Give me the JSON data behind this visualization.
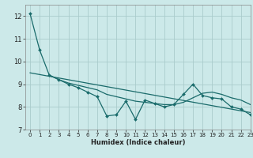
{
  "xlabel": "Humidex (Indice chaleur)",
  "background_color": "#cce9e9",
  "grid_color": "#aacccc",
  "line_color": "#1a6b6b",
  "xlim": [
    -0.5,
    23
  ],
  "ylim": [
    7,
    12.5
  ],
  "yticks": [
    7,
    8,
    9,
    10,
    11,
    12
  ],
  "xticks": [
    0,
    1,
    2,
    3,
    4,
    5,
    6,
    7,
    8,
    9,
    10,
    11,
    12,
    13,
    14,
    15,
    16,
    17,
    18,
    19,
    20,
    21,
    22,
    23
  ],
  "jagged_x": [
    0,
    1,
    2,
    3,
    4,
    5,
    6,
    7,
    8,
    9,
    10,
    11,
    12,
    13,
    14,
    15,
    16,
    17,
    18,
    19,
    20,
    21,
    22,
    23
  ],
  "jagged_y": [
    12.1,
    10.5,
    9.4,
    9.2,
    9.0,
    8.85,
    8.65,
    8.45,
    7.6,
    7.65,
    8.25,
    7.45,
    8.3,
    8.15,
    8.0,
    8.1,
    8.55,
    9.0,
    8.5,
    8.4,
    8.35,
    8.0,
    7.9,
    7.65
  ],
  "smooth_x": [
    2,
    3,
    4,
    5,
    6,
    7,
    8,
    9,
    10,
    11,
    12,
    13,
    14,
    15,
    16,
    17,
    18,
    19,
    20,
    21,
    22,
    23
  ],
  "smooth_y": [
    9.4,
    9.2,
    9.05,
    8.95,
    8.85,
    8.75,
    8.55,
    8.45,
    8.35,
    8.25,
    8.2,
    8.15,
    8.1,
    8.1,
    8.2,
    8.4,
    8.6,
    8.65,
    8.55,
    8.4,
    8.3,
    8.1
  ],
  "trend_x": [
    0,
    23
  ],
  "trend_y": [
    9.5,
    7.75
  ]
}
